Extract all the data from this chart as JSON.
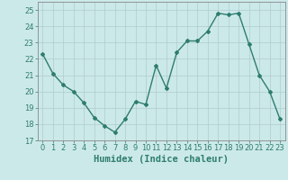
{
  "x": [
    0,
    1,
    2,
    3,
    4,
    5,
    6,
    7,
    8,
    9,
    10,
    11,
    12,
    13,
    14,
    15,
    16,
    17,
    18,
    19,
    20,
    21,
    22,
    23
  ],
  "y": [
    22.3,
    21.1,
    20.4,
    20.0,
    19.3,
    18.4,
    17.9,
    17.5,
    18.3,
    19.4,
    19.2,
    21.6,
    20.2,
    22.4,
    23.1,
    23.1,
    23.7,
    24.8,
    24.7,
    24.8,
    22.9,
    21.0,
    20.0,
    18.3
  ],
  "line_color": "#2e7d6e",
  "marker": "D",
  "marker_size": 2.0,
  "line_width": 1.0,
  "xlabel": "Humidex (Indice chaleur)",
  "ylim": [
    17,
    25.5
  ],
  "yticks": [
    17,
    18,
    19,
    20,
    21,
    22,
    23,
    24,
    25
  ],
  "xlim": [
    -0.5,
    23.5
  ],
  "xticks": [
    0,
    1,
    2,
    3,
    4,
    5,
    6,
    7,
    8,
    9,
    10,
    11,
    12,
    13,
    14,
    15,
    16,
    17,
    18,
    19,
    20,
    21,
    22,
    23
  ],
  "xtick_labels": [
    "0",
    "1",
    "2",
    "3",
    "4",
    "5",
    "6",
    "7",
    "8",
    "9",
    "10",
    "11",
    "12",
    "13",
    "14",
    "15",
    "16",
    "17",
    "18",
    "19",
    "20",
    "21",
    "22",
    "23"
  ],
  "bg_color": "#cce9e9",
  "grid_color": "#b0cccc",
  "xlabel_fontsize": 7.5,
  "tick_fontsize": 6.0
}
